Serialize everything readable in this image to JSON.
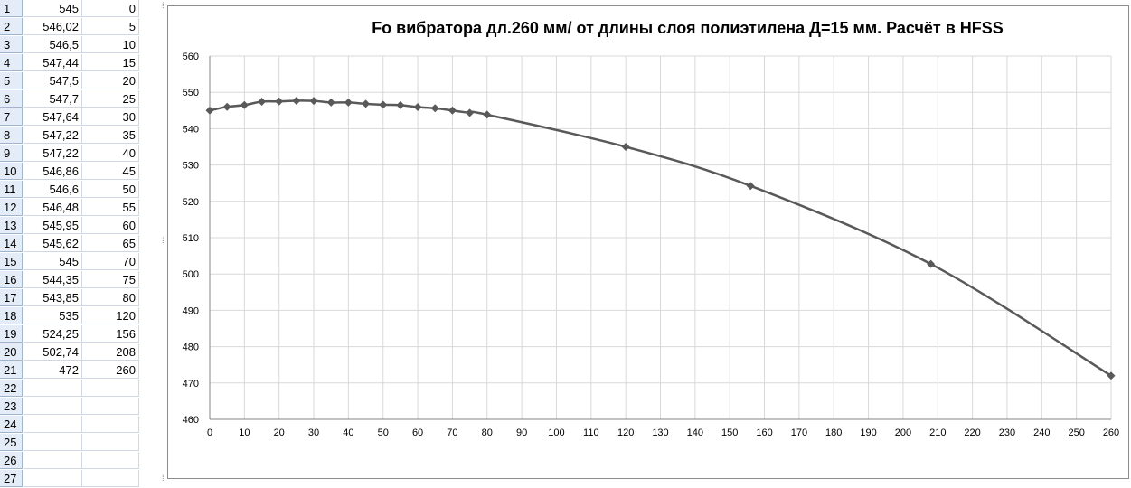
{
  "sheet": {
    "rows": [
      {
        "num": "1",
        "a": "545",
        "b": "0"
      },
      {
        "num": "2",
        "a": "546,02",
        "b": "5"
      },
      {
        "num": "3",
        "a": "546,5",
        "b": "10"
      },
      {
        "num": "4",
        "a": "547,44",
        "b": "15"
      },
      {
        "num": "5",
        "a": "547,5",
        "b": "20"
      },
      {
        "num": "6",
        "a": "547,7",
        "b": "25"
      },
      {
        "num": "7",
        "a": "547,64",
        "b": "30"
      },
      {
        "num": "8",
        "a": "547,22",
        "b": "35"
      },
      {
        "num": "9",
        "a": "547,22",
        "b": "40"
      },
      {
        "num": "10",
        "a": "546,86",
        "b": "45"
      },
      {
        "num": "11",
        "a": "546,6",
        "b": "50"
      },
      {
        "num": "12",
        "a": "546,48",
        "b": "55"
      },
      {
        "num": "13",
        "a": "545,95",
        "b": "60"
      },
      {
        "num": "14",
        "a": "545,62",
        "b": "65"
      },
      {
        "num": "15",
        "a": "545",
        "b": "70"
      },
      {
        "num": "16",
        "a": "544,35",
        "b": "75"
      },
      {
        "num": "17",
        "a": "543,85",
        "b": "80"
      },
      {
        "num": "18",
        "a": "535",
        "b": "120"
      },
      {
        "num": "19",
        "a": "524,25",
        "b": "156"
      },
      {
        "num": "20",
        "a": "502,74",
        "b": "208"
      },
      {
        "num": "21",
        "a": "472",
        "b": "260"
      },
      {
        "num": "22",
        "a": "",
        "b": ""
      },
      {
        "num": "23",
        "a": "",
        "b": ""
      },
      {
        "num": "24",
        "a": "",
        "b": ""
      },
      {
        "num": "25",
        "a": "",
        "b": ""
      },
      {
        "num": "26",
        "a": "",
        "b": ""
      },
      {
        "num": "27",
        "a": "",
        "b": ""
      }
    ]
  },
  "chart_data": {
    "type": "scatter",
    "title": "Fo  вибратора дл.260 мм/ от длины слоя полиэтилена Д=15 мм. Расчёт в HFSS",
    "xlabel": "",
    "ylabel": "",
    "xlim": [
      0,
      260
    ],
    "ylim": [
      460,
      560
    ],
    "xticks": [
      "0",
      "10",
      "20",
      "30",
      "40",
      "50",
      "60",
      "70",
      "80",
      "90",
      "100",
      "110",
      "120",
      "130",
      "140",
      "150",
      "160",
      "170",
      "180",
      "190",
      "200",
      "210",
      "220",
      "230",
      "240",
      "250",
      "260"
    ],
    "yticks": [
      "460",
      "470",
      "480",
      "490",
      "500",
      "510",
      "520",
      "530",
      "540",
      "550",
      "560"
    ],
    "grid": true,
    "series": [
      {
        "x": [
          0,
          5,
          10,
          15,
          20,
          25,
          30,
          35,
          40,
          45,
          50,
          55,
          60,
          65,
          70,
          75,
          80,
          120,
          156,
          208,
          260
        ],
        "y": [
          545,
          546.02,
          546.5,
          547.44,
          547.5,
          547.7,
          547.64,
          547.22,
          547.22,
          546.86,
          546.6,
          546.48,
          545.95,
          545.62,
          545,
          544.35,
          543.85,
          535,
          524.25,
          502.74,
          472
        ],
        "color": "#595959",
        "marker": "diamond",
        "smooth": true
      }
    ]
  }
}
